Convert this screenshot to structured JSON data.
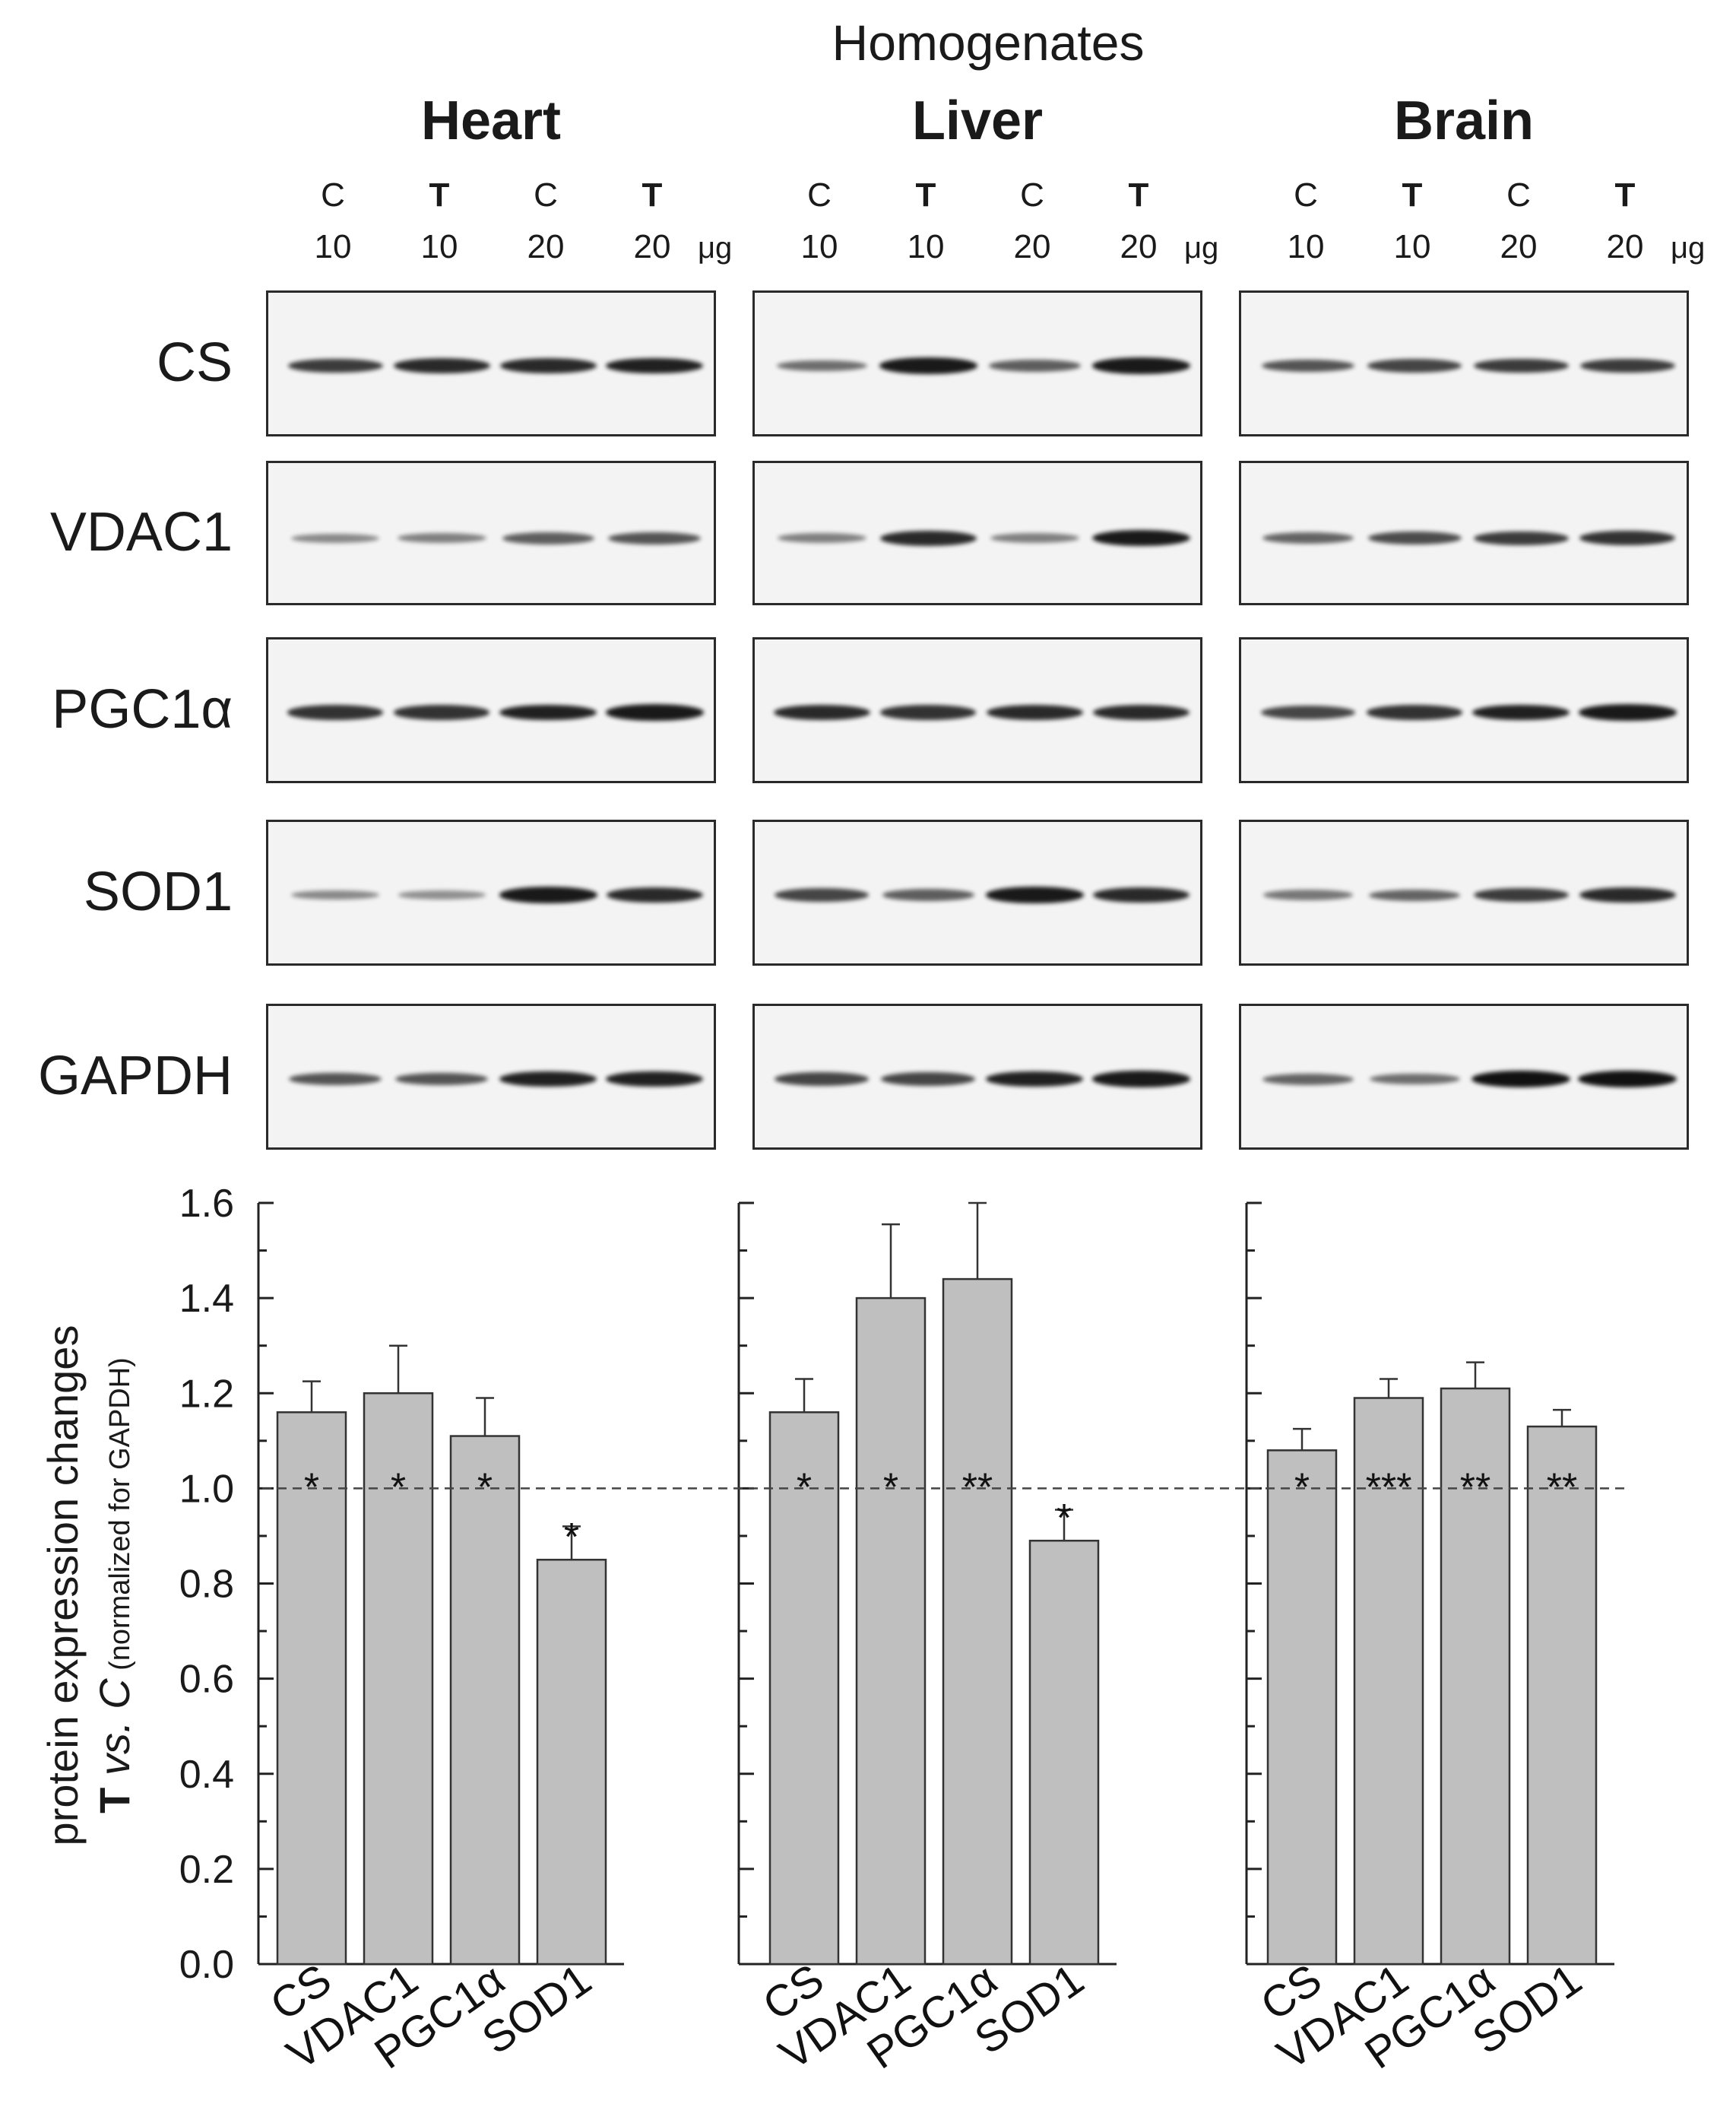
{
  "figure": {
    "super_title": "Homogenates",
    "unit": "μg",
    "lanes": [
      {
        "condition": "C",
        "amount": "10",
        "bold": false
      },
      {
        "condition": "T",
        "amount": "10",
        "bold": true
      },
      {
        "condition": "C",
        "amount": "20",
        "bold": false
      },
      {
        "condition": "T",
        "amount": "20",
        "bold": true
      }
    ],
    "tissues": [
      "Heart",
      "Liver",
      "Brain"
    ],
    "proteins": [
      "CS",
      "VDAC1",
      "PGC1α",
      "SOD1",
      "GAPDH"
    ],
    "band_intensity": {
      "Heart": {
        "CS": [
          0.75,
          0.85,
          0.85,
          0.9
        ],
        "VDAC1": [
          0.3,
          0.35,
          0.55,
          0.6
        ],
        "PGC1α": [
          0.8,
          0.8,
          0.9,
          0.95
        ],
        "SOD1": [
          0.3,
          0.25,
          0.95,
          0.85
        ],
        "GAPDH": [
          0.6,
          0.6,
          0.9,
          0.9
        ]
      },
      "Liver": {
        "CS": [
          0.45,
          0.95,
          0.55,
          0.95
        ],
        "VDAC1": [
          0.35,
          0.85,
          0.35,
          0.95
        ],
        "PGC1α": [
          0.85,
          0.8,
          0.85,
          0.85
        ],
        "SOD1": [
          0.7,
          0.55,
          0.95,
          0.85
        ],
        "GAPDH": [
          0.7,
          0.7,
          0.9,
          0.95
        ]
      },
      "Brain": {
        "CS": [
          0.6,
          0.7,
          0.75,
          0.75
        ],
        "VDAC1": [
          0.5,
          0.65,
          0.75,
          0.8
        ],
        "PGC1α": [
          0.7,
          0.8,
          0.9,
          0.95
        ],
        "SOD1": [
          0.4,
          0.5,
          0.75,
          0.85
        ],
        "GAPDH": [
          0.5,
          0.45,
          1.0,
          1.0
        ]
      }
    }
  },
  "chart_data": {
    "type": "bar",
    "ylabel_line1": "protein expression changes",
    "ylabel_line2_bold": "T",
    "ylabel_line2_italic": " vs. C",
    "ylabel_line2_small": " (normalized for GAPDH)",
    "ylim": [
      0,
      1.6
    ],
    "yticks": [
      "0.0",
      "0.2",
      "0.4",
      "0.6",
      "0.8",
      "1.0",
      "1.2",
      "1.4",
      "1.6"
    ],
    "reference_line": 1.0,
    "panels": [
      {
        "tissue": "Heart",
        "categories": [
          "CS",
          "VDAC1",
          "PGC1α",
          "SOD1"
        ],
        "values": [
          1.16,
          1.2,
          1.11,
          0.85
        ],
        "errors": [
          0.065,
          0.1,
          0.08,
          0.07
        ],
        "significance": [
          "*",
          "*",
          "*",
          "*"
        ]
      },
      {
        "tissue": "Liver",
        "categories": [
          "CS",
          "VDAC1",
          "PGC1α",
          "SOD1"
        ],
        "values": [
          1.16,
          1.4,
          1.44,
          0.89
        ],
        "errors": [
          0.07,
          0.155,
          0.16,
          0.065
        ],
        "significance": [
          "*",
          "*",
          "**",
          "*"
        ]
      },
      {
        "tissue": "Brain",
        "categories": [
          "CS",
          "VDAC1",
          "PGC1α",
          "SOD1"
        ],
        "values": [
          1.08,
          1.19,
          1.21,
          1.13
        ],
        "errors": [
          0.045,
          0.04,
          0.055,
          0.035
        ],
        "significance": [
          "*",
          "***",
          "**",
          "**"
        ]
      }
    ],
    "bar_color": "#bfbfbf",
    "edge_color": "#333333"
  }
}
